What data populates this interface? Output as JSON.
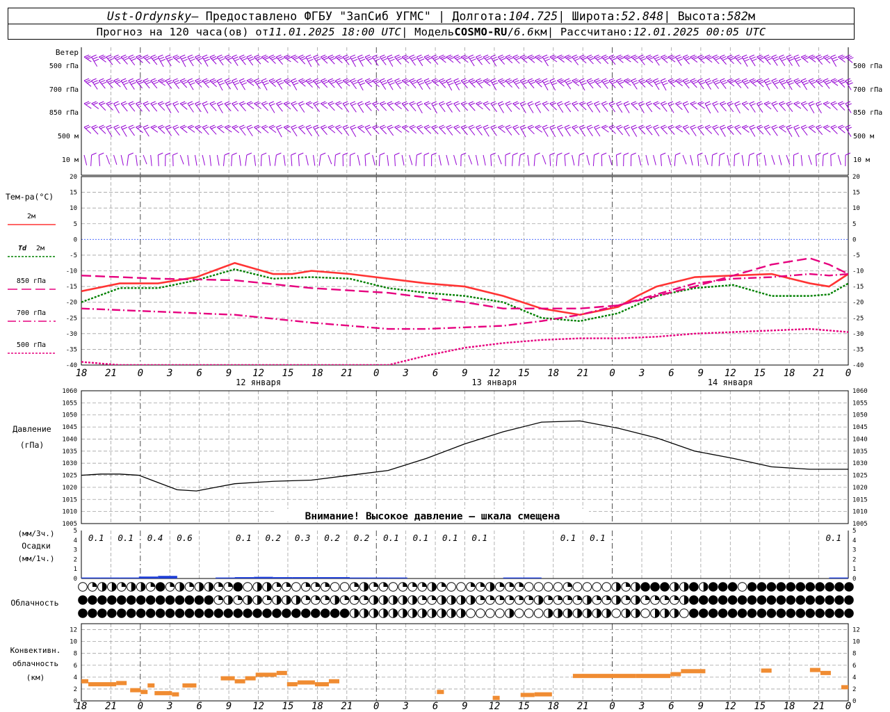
{
  "header": {
    "station": "Ust-Ordynsky",
    "provider": " — Предоставлено ФГБУ \"ЗапСиб УГМС\" | Долгота: ",
    "lon": "104.725",
    "lat_label": " | Широта: ",
    "lat": "52.848",
    "alt_label": " | Высота: ",
    "alt": "582",
    "alt_unit": "м",
    "line2_a": "Прогноз на 120 часа(ов) от ",
    "run": "11.01.2025 18:00 UTC",
    "line2_b": " | Модель ",
    "model": "COSMO-RU",
    "sep": " / ",
    "res": "6.6",
    "res_unit": "км",
    "line2_c": " | Рассчитано: ",
    "calc": "12.01.2025 00:05 UTC"
  },
  "wind_panel": {
    "title": "Ветер",
    "levels": [
      "500 гПа",
      "700 гПа",
      "850 гПа",
      "500 м",
      "10  м"
    ],
    "color": "#9400d3"
  },
  "temp_panel": {
    "title": "Тем-ра(°C)",
    "legend": [
      {
        "label": "2м",
        "color": "#ff3333",
        "dash": ""
      },
      {
        "label_a": "Td",
        "label_b": "2м",
        "color": "#008000",
        "dash": "3,2"
      },
      {
        "label": "850 гПа",
        "color": "#e6007e",
        "dash": "14,6"
      },
      {
        "label": "700 гПа",
        "color": "#e6007e",
        "dash": "12,4,2,4"
      },
      {
        "label": "500 гПа",
        "color": "#e6007e",
        "dash": "3,2"
      }
    ]
  },
  "pressure_panel": {
    "title_a": "Давление",
    "title_b": "(гПа)",
    "warning": "Внимание! Высокое давление — шкала смещена"
  },
  "precip_panel": {
    "unit_a": "(мм/3ч.)",
    "title": "Осадки",
    "unit_b": "(мм/1ч.)",
    "labels": [
      {
        "t": 1,
        "v": "0.1"
      },
      {
        "t": 2,
        "v": "0.1"
      },
      {
        "t": 3,
        "v": "0.4"
      },
      {
        "t": 4,
        "v": "0.6"
      },
      {
        "t": 6,
        "v": "0.1"
      },
      {
        "t": 7,
        "v": "0.2"
      },
      {
        "t": 8,
        "v": "0.3"
      },
      {
        "t": 9,
        "v": "0.2"
      },
      {
        "t": 10,
        "v": "0.2"
      },
      {
        "t": 11,
        "v": "0.1"
      },
      {
        "t": 12,
        "v": "0.1"
      },
      {
        "t": 13,
        "v": "0.1"
      },
      {
        "t": 14,
        "v": "0.1"
      },
      {
        "t": 17,
        "v": "0.1"
      },
      {
        "t": 18,
        "v": "0.1"
      },
      {
        "t": 26,
        "v": "0.1"
      }
    ]
  },
  "cloud_panel": {
    "title": "Облачность"
  },
  "conv_panel": {
    "title_a": "Конвективн.",
    "title_b": "облачность",
    "title_c": "(км)",
    "color": "#f08c32"
  },
  "time_axis": {
    "hour_labels": [
      "18",
      "21",
      "0",
      "3",
      "6",
      "9",
      "12",
      "15",
      "18",
      "21",
      "0",
      "3",
      "6",
      "9",
      "12",
      "15",
      "18",
      "21",
      "0",
      "3",
      "6",
      "9",
      "12",
      "15",
      "18",
      "21",
      "0"
    ],
    "day_labels": [
      {
        "t": 6,
        "label": "12 января"
      },
      {
        "t": 14,
        "label": "13 января"
      },
      {
        "t": 22,
        "label": "14 января"
      }
    ]
  },
  "chart_data": [
    {
      "type": "line",
      "title": "Тем-ра(°C)",
      "x_unit": "hours from 11.01.2025 18:00 UTC",
      "ylim": [
        -40,
        20
      ],
      "yticks": [
        -40,
        -35,
        -30,
        -25,
        -20,
        -15,
        -10,
        -5,
        0,
        5,
        10,
        15,
        20
      ],
      "grid": true,
      "series": [
        {
          "name": "2м",
          "x": [
            0,
            6,
            12,
            18,
            24,
            30,
            33,
            36,
            42,
            48,
            54,
            60,
            66,
            72,
            78,
            84,
            87,
            90,
            96,
            102,
            108,
            114,
            117,
            120
          ],
          "values": [
            -16.5,
            -14,
            -14,
            -12,
            -7.5,
            -11,
            -11,
            -10,
            -11,
            -12.5,
            -14,
            -15,
            -18,
            -22,
            -24,
            -21.5,
            -18,
            -15,
            -12,
            -11.5,
            -11,
            -14,
            -15,
            -11
          ]
        },
        {
          "name": "Td 2м",
          "x": [
            0,
            6,
            12,
            18,
            24,
            30,
            36,
            42,
            48,
            54,
            60,
            66,
            72,
            78,
            84,
            90,
            96,
            102,
            108,
            114,
            117,
            120
          ],
          "values": [
            -20,
            -15.5,
            -15.5,
            -13,
            -9.5,
            -12.5,
            -12,
            -12.5,
            -15.5,
            -17,
            -18,
            -20,
            -25,
            -26,
            -23.5,
            -18,
            -15.5,
            -14.5,
            -18,
            -18,
            -17.5,
            -14
          ]
        },
        {
          "name": "850 гПа",
          "x": [
            0,
            6,
            12,
            24,
            36,
            48,
            60,
            66,
            72,
            78,
            84,
            90,
            96,
            102,
            108,
            114,
            117,
            120
          ],
          "values": [
            -11.5,
            -12,
            -12.5,
            -13,
            -15.5,
            -17,
            -20,
            -22,
            -22,
            -22,
            -21,
            -18,
            -15,
            -11.5,
            -8,
            -6,
            -8,
            -11
          ]
        },
        {
          "name": "700 гПа",
          "x": [
            0,
            12,
            24,
            36,
            48,
            54,
            60,
            66,
            72,
            78,
            84,
            90,
            96,
            102,
            108,
            114,
            117,
            120
          ],
          "values": [
            -22,
            -23,
            -24,
            -26.5,
            -28.5,
            -28.5,
            -28,
            -27.5,
            -26,
            -24,
            -21,
            -17.5,
            -14,
            -12.5,
            -12,
            -11,
            -11.5,
            -11
          ]
        },
        {
          "name": "500 гПа",
          "x": [
            0,
            6,
            12,
            24,
            48,
            54,
            60,
            66,
            72,
            78,
            84,
            90,
            96,
            102,
            108,
            114,
            120
          ],
          "values": [
            -39,
            -40,
            -40,
            -40,
            -40,
            -37,
            -34.5,
            -33,
            -32,
            -31.5,
            -31.5,
            -31,
            -30,
            -29.5,
            -29,
            -28.5,
            -29.5
          ]
        }
      ]
    },
    {
      "type": "line",
      "title": "Давление (гПа)",
      "ylim": [
        1005,
        1060
      ],
      "yticks": [
        1005,
        1010,
        1015,
        1020,
        1025,
        1030,
        1035,
        1040,
        1045,
        1050,
        1055,
        1060
      ],
      "series": [
        {
          "name": "",
          "x": [
            0,
            3,
            6,
            9,
            12,
            15,
            18,
            21,
            24,
            30,
            36,
            42,
            48,
            54,
            60,
            66,
            72,
            78,
            84,
            90,
            96,
            102,
            108,
            114,
            117,
            120
          ],
          "values": [
            1025,
            1025.5,
            1025.5,
            1025,
            1022,
            1019,
            1018.5,
            1020,
            1021.5,
            1022.5,
            1023,
            1025,
            1027,
            1032,
            1038,
            1043,
            1047,
            1047.5,
            1044.5,
            1040.5,
            1035,
            1032,
            1028.5,
            1027.5,
            1027.5,
            1027.5
          ]
        }
      ]
    },
    {
      "type": "bar",
      "title": "Осадки (мм/1ч.)",
      "ylim": [
        0,
        5
      ],
      "x": [
        3,
        6,
        9,
        12,
        15,
        18,
        21,
        24,
        27,
        30,
        33,
        36,
        39,
        42,
        45,
        48,
        51,
        54,
        57,
        60,
        63,
        66,
        69,
        72,
        75,
        78,
        81,
        84,
        87,
        90,
        93,
        96,
        99,
        102,
        105,
        108,
        111,
        114,
        117,
        120
      ],
      "values": [
        0.03,
        0.03,
        0.03,
        0.13,
        0.2,
        0,
        0,
        0.03,
        0.07,
        0.1,
        0.07,
        0.07,
        0.07,
        0.07,
        0.03,
        0.03,
        0.03,
        0,
        0,
        0,
        0,
        0,
        0.03,
        0.03,
        0,
        0,
        0,
        0,
        0,
        0,
        0,
        0,
        0,
        0,
        0,
        0,
        0,
        0,
        0,
        0.03
      ]
    },
    {
      "type": "bar",
      "title": "Конвективн. облачность (км)",
      "ylim": [
        0,
        13
      ],
      "yticks": [
        0,
        2,
        4,
        6,
        8,
        10,
        12
      ],
      "segments": [
        [
          0,
          2,
          3.3
        ],
        [
          2,
          10,
          2.8
        ],
        [
          10,
          13,
          3.0
        ],
        [
          14,
          17,
          1.8
        ],
        [
          17,
          19,
          1.5
        ],
        [
          19,
          21,
          2.6
        ],
        [
          21,
          26,
          1.3
        ],
        [
          26,
          28,
          1.1
        ],
        [
          29,
          33,
          2.6
        ],
        [
          40,
          44,
          3.8
        ],
        [
          44,
          47,
          3.3
        ],
        [
          47,
          50,
          3.8
        ],
        [
          50,
          56,
          4.4
        ],
        [
          56,
          59,
          4.7
        ],
        [
          59,
          62,
          2.8
        ],
        [
          62,
          67,
          3.1
        ],
        [
          67,
          71,
          2.8
        ],
        [
          71,
          74,
          3.3
        ],
        [
          102,
          104,
          1.5
        ],
        [
          118,
          120,
          0.5
        ],
        [
          126,
          130,
          1.0
        ],
        [
          130,
          135,
          1.1
        ],
        [
          141,
          148,
          4.2
        ],
        [
          148,
          159,
          4.2
        ],
        [
          159,
          169,
          4.2
        ],
        [
          169,
          172,
          4.5
        ],
        [
          172,
          179,
          5.0
        ],
        [
          195,
          198,
          5.1
        ],
        [
          209,
          212,
          5.2
        ],
        [
          212,
          215,
          4.7
        ],
        [
          218,
          220,
          2.3
        ]
      ]
    }
  ]
}
